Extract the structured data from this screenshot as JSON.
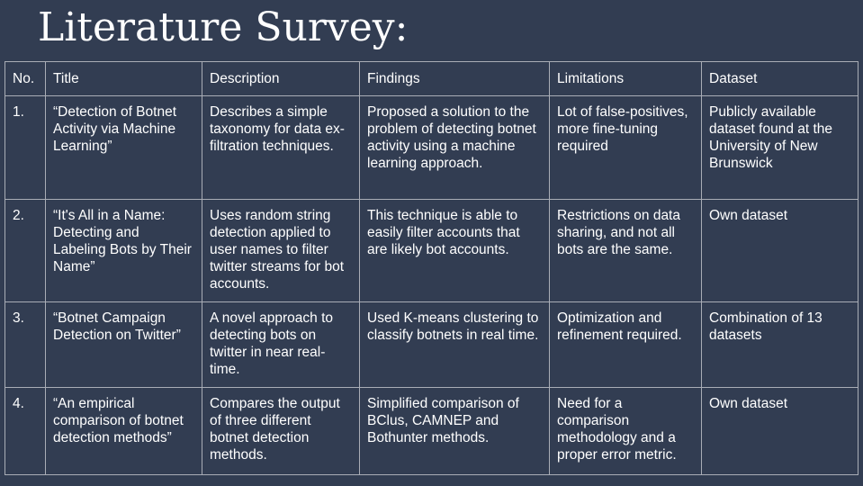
{
  "title": "Literature Survey:",
  "table": {
    "headers": [
      "No.",
      "Title",
      "Description",
      "Findings",
      "Limitations",
      "Dataset"
    ],
    "rows": [
      {
        "no": "1.",
        "title": "“Detection of Botnet Activity via Machine Learning”",
        "description": "Describes a simple taxonomy for data ex-filtration techniques.",
        "findings": "Proposed a solution to the problem of detecting botnet activity using a machine learning approach.",
        "limitations": "Lot of false-positives, more fine-tuning required",
        "dataset": "Publicly available dataset found at the University of New Brunswick"
      },
      {
        "no": "2.",
        "title": "“It's All in a Name: Detecting and Labeling Bots by Their Name”",
        "description": "Uses random string detection applied to user names to filter twitter streams for bot accounts.",
        "findings": "This technique is able to easily filter accounts that are likely bot accounts.",
        "limitations": "Restrictions on data sharing, and not all bots are the same.",
        "dataset": "Own dataset"
      },
      {
        "no": "3.",
        "title": "“Botnet Campaign Detection on Twitter”",
        "description": "A novel approach to detecting bots on twitter in near real-time.",
        "findings": "Used K-means clustering to classify botnets in real time.",
        "limitations": "Optimization and refinement required.",
        "dataset": "Combination of 13 datasets"
      },
      {
        "no": "4.",
        "title": "“An empirical comparison of botnet detection methods”",
        "description": "Compares the output of three different botnet detection methods.",
        "findings": "Simplified comparison of BClus, CAMNEP and Bothunter methods.",
        "limitations": "Need for a comparison methodology and a proper error metric.",
        "dataset": "Own dataset"
      }
    ]
  }
}
